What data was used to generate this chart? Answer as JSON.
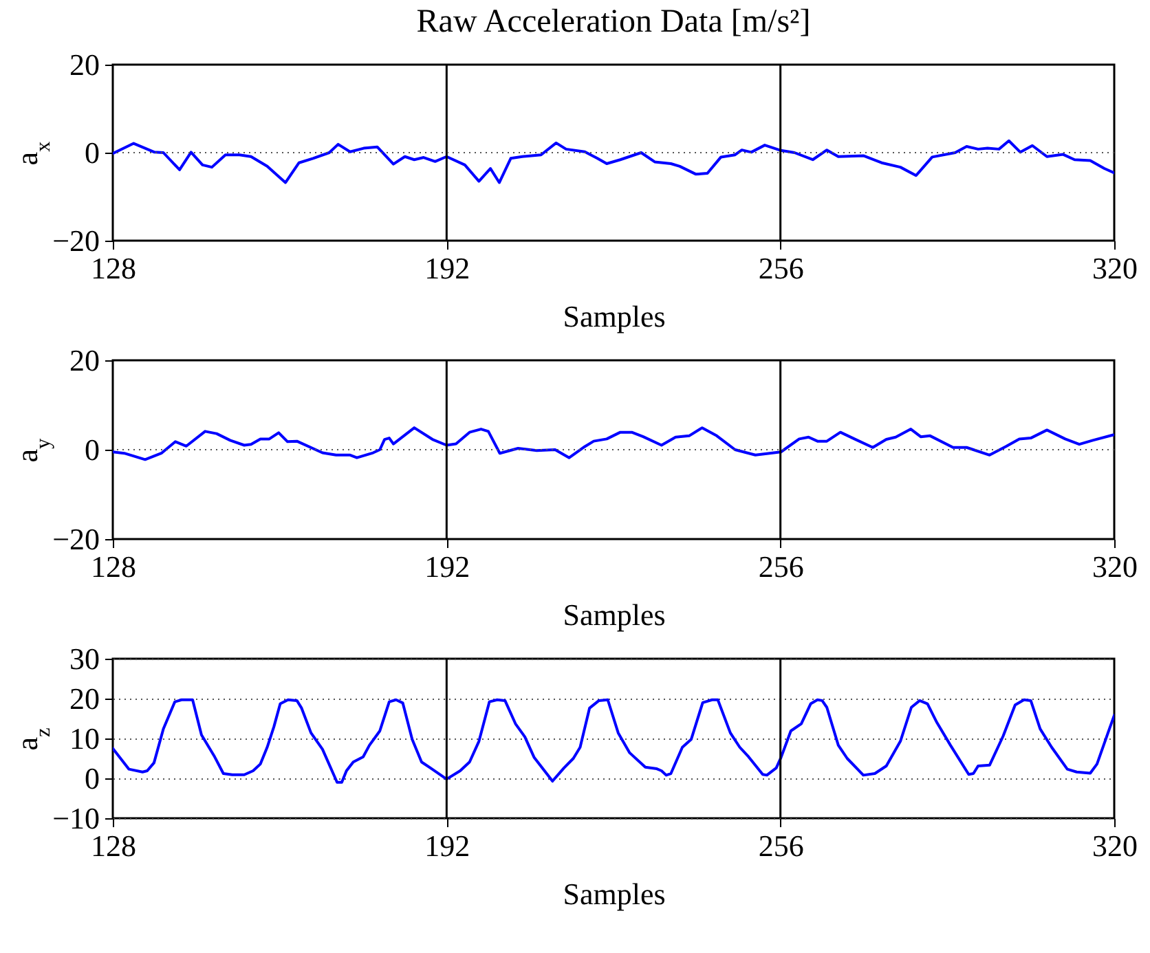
{
  "chart_data": [
    {
      "type": "line",
      "title": "Raw Acceleration Data [m/s²]",
      "xlabel": "Samples",
      "ylabel": "a$_{x}$",
      "xlim": [
        128,
        320
      ],
      "xticks": [
        128,
        192,
        256,
        320
      ],
      "ylim": [
        -20,
        20
      ],
      "yticks": [
        -20,
        0,
        20
      ],
      "ref_lines": [
        {
          "axis": "x",
          "value": 192
        },
        {
          "axis": "x",
          "value": 256
        },
        {
          "axis": "y",
          "value": 0,
          "line_style": "dotted",
          "color": "#555555"
        }
      ],
      "series": [
        {
          "color": "#0000ff",
          "x": [
            128,
            132,
            136,
            137.7,
            140.8,
            143,
            145.2,
            147,
            149.6,
            152.3,
            154.5,
            157.6,
            161.1,
            163.7,
            166.4,
            169.5,
            171.2,
            173.5,
            176.1,
            178.7,
            181.8,
            184,
            185.8,
            187.6,
            189.8,
            192,
            195.5,
            198.2,
            200.4,
            202.1,
            204.3,
            206.5,
            210.1,
            213,
            214.9,
            218.5,
            220.9,
            222.7,
            225.3,
            229.3,
            231.9,
            235,
            236.7,
            239.8,
            242,
            244.6,
            247.3,
            248.6,
            250.4,
            253,
            256.1,
            258.7,
            262.2,
            264.9,
            267.1,
            271.9,
            275.4,
            279,
            282,
            285.1,
            289.5,
            291.7,
            293.9,
            295.7,
            297.9,
            299.8,
            302,
            304.3,
            307.1,
            310.2,
            312.4,
            315.4,
            318.1,
            320
          ],
          "values": [
            -0.2,
            2.1,
            0.1,
            0,
            -3.9,
            0.1,
            -2.8,
            -3.3,
            -0.5,
            -0.5,
            -0.9,
            -3.1,
            -6.8,
            -2.3,
            -1.3,
            0,
            1.9,
            0.2,
            1,
            1.3,
            -2.6,
            -0.9,
            -1.6,
            -1.1,
            -2,
            -0.9,
            -2.8,
            -6.5,
            -3.6,
            -6.8,
            -1.3,
            -0.9,
            -0.5,
            2.2,
            0.8,
            0.2,
            -1.3,
            -2.5,
            -1.6,
            0,
            -2.1,
            -2.5,
            -3.1,
            -4.9,
            -4.7,
            -1,
            -0.5,
            0.6,
            0.1,
            1.7,
            0.5,
            0,
            -1.6,
            0.6,
            -0.9,
            -0.7,
            -2.3,
            -3.3,
            -5.2,
            -1,
            0,
            1.4,
            0.8,
            1,
            0.8,
            2.7,
            0.1,
            1.6,
            -0.9,
            -0.4,
            -1.6,
            -1.8,
            -3.6,
            -4.6
          ]
        }
      ]
    },
    {
      "type": "line",
      "xlabel": "Samples",
      "ylabel": "a$_{y}$",
      "xlim": [
        128,
        320
      ],
      "xticks": [
        128,
        192,
        256,
        320
      ],
      "ylim": [
        -20,
        20
      ],
      "yticks": [
        -20,
        0,
        20
      ],
      "ref_lines": [
        {
          "axis": "x",
          "value": 192
        },
        {
          "axis": "x",
          "value": 256
        },
        {
          "axis": "y",
          "value": 0,
          "line_style": "dotted",
          "color": "#555555"
        }
      ],
      "series": [
        {
          "color": "#0000ff",
          "x": [
            128,
            130.2,
            134.2,
            137.3,
            140,
            142.1,
            145.7,
            147.9,
            150.5,
            153.2,
            154.5,
            156.3,
            158,
            159.8,
            161.5,
            163.3,
            168.2,
            170.8,
            173.5,
            174.8,
            177.9,
            179.2,
            180.1,
            181,
            181.8,
            185.8,
            189.3,
            192,
            193.8,
            196.4,
            198.6,
            200,
            202.2,
            205.7,
            209.3,
            212.8,
            215.5,
            218.5,
            220.2,
            222.7,
            225.3,
            227.5,
            229.7,
            233.2,
            235.9,
            238.5,
            241,
            243.8,
            247.3,
            251.2,
            256.1,
            259.6,
            261.4,
            263.1,
            264.9,
            267.5,
            270.2,
            273.7,
            276.3,
            278.1,
            281,
            282.9,
            284.7,
            289.1,
            291.7,
            296.1,
            299.2,
            301.8,
            304,
            307.1,
            310.6,
            313.3,
            315.9,
            319.8
          ],
          "values": [
            -0.5,
            -0.8,
            -2.2,
            -0.8,
            1.8,
            0.8,
            4.1,
            3.6,
            2.1,
            1,
            1.2,
            2.4,
            2.4,
            3.8,
            1.8,
            1.9,
            -0.7,
            -1.2,
            -1.2,
            -1.8,
            -0.7,
            0,
            2.3,
            2.6,
            1.3,
            4.9,
            2.3,
            1,
            1.3,
            3.9,
            4.6,
            4.1,
            -0.8,
            0.3,
            -0.2,
            0,
            -1.8,
            0.7,
            1.9,
            2.4,
            3.9,
            3.9,
            2.9,
            1,
            2.8,
            3.1,
            4.9,
            3.1,
            0,
            -1.2,
            -0.5,
            2.4,
            2.8,
            1.9,
            1.9,
            3.9,
            2.4,
            0.5,
            2.3,
            2.8,
            4.6,
            2.9,
            3.1,
            0.5,
            0.5,
            -1.2,
            0.7,
            2.4,
            2.6,
            4.4,
            2.4,
            1.2,
            2.1,
            3.3
          ]
        }
      ]
    },
    {
      "type": "line",
      "xlabel": "Samples",
      "ylabel": "a$_{z}$",
      "xlim": [
        128,
        320
      ],
      "xticks": [
        128,
        192,
        256,
        320
      ],
      "ylim": [
        -10,
        30
      ],
      "yticks": [
        -10,
        0,
        10,
        20,
        30
      ],
      "grid": "y",
      "ref_lines": [
        {
          "axis": "x",
          "value": 192
        },
        {
          "axis": "x",
          "value": 256
        }
      ],
      "series": [
        {
          "color": "#0000ff",
          "x": [
            128,
            131.1,
            133.7,
            134.6,
            135.9,
            137.7,
            139.9,
            141.2,
            143.3,
            145,
            147.4,
            149.2,
            150.9,
            153.2,
            154.9,
            156.3,
            157.6,
            158.9,
            160.1,
            161.6,
            163.3,
            164.2,
            166,
            168.2,
            171,
            171.9,
            172.8,
            174.1,
            176,
            177.2,
            179.2,
            181,
            182.3,
            183.6,
            185.4,
            187.2,
            188.9,
            192,
            194.6,
            196.4,
            198.2,
            200.2,
            201.7,
            203.2,
            205.2,
            207,
            208.8,
            212.3,
            214.5,
            216.3,
            217.6,
            219.4,
            221.2,
            222.9,
            224.9,
            227.1,
            230.1,
            232.3,
            233.2,
            234.1,
            235,
            237.2,
            238.9,
            241.1,
            242.9,
            244,
            246.4,
            248.2,
            249.9,
            252.6,
            253.4,
            255.2,
            256.1,
            258,
            260,
            261.8,
            263.1,
            264,
            264.9,
            267.1,
            268.8,
            271.9,
            274.1,
            276.3,
            279,
            281.1,
            282.7,
            284.2,
            286,
            288.6,
            292.1,
            293,
            293.9,
            296.1,
            298.7,
            301,
            302.7,
            304,
            305.8,
            308,
            311,
            312.8,
            315.4,
            316.7,
            318.8,
            320
          ],
          "values": [
            7.5,
            2.3,
            1.6,
            1.9,
            3.9,
            12.4,
            19.2,
            19.7,
            19.7,
            10.9,
            5.7,
            1.2,
            0.9,
            0.9,
            1.9,
            3.6,
            7.8,
            13,
            18.7,
            19.7,
            19.5,
            17.6,
            11.4,
            7.3,
            -1,
            -1,
            1.9,
            4.1,
            5.4,
            8.3,
            11.9,
            19.2,
            19.7,
            18.9,
            9.8,
            4.1,
            2.6,
            -0.2,
            1.9,
            4.1,
            9.3,
            19.2,
            19.7,
            19.5,
            13.7,
            10.4,
            5.2,
            -0.7,
            2.6,
            5,
            7.8,
            17.6,
            19.5,
            19.7,
            11.4,
            6.4,
            2.8,
            2.4,
            1.9,
            0.8,
            1.2,
            7.8,
            9.8,
            19,
            19.7,
            19.7,
            11.4,
            7.8,
            5.4,
            1,
            0.8,
            2.6,
            5.2,
            11.9,
            13.7,
            18.7,
            19.7,
            19.5,
            17.8,
            8.3,
            5,
            0.8,
            1.2,
            3.1,
            9.3,
            17.8,
            19.5,
            18.7,
            14,
            8.3,
            1,
            1.2,
            3.1,
            3.3,
            10.6,
            18.4,
            19.7,
            19.5,
            12.4,
            7.8,
            2.3,
            1.6,
            1.3,
            3.6,
            11.4,
            15.8
          ]
        }
      ]
    }
  ]
}
